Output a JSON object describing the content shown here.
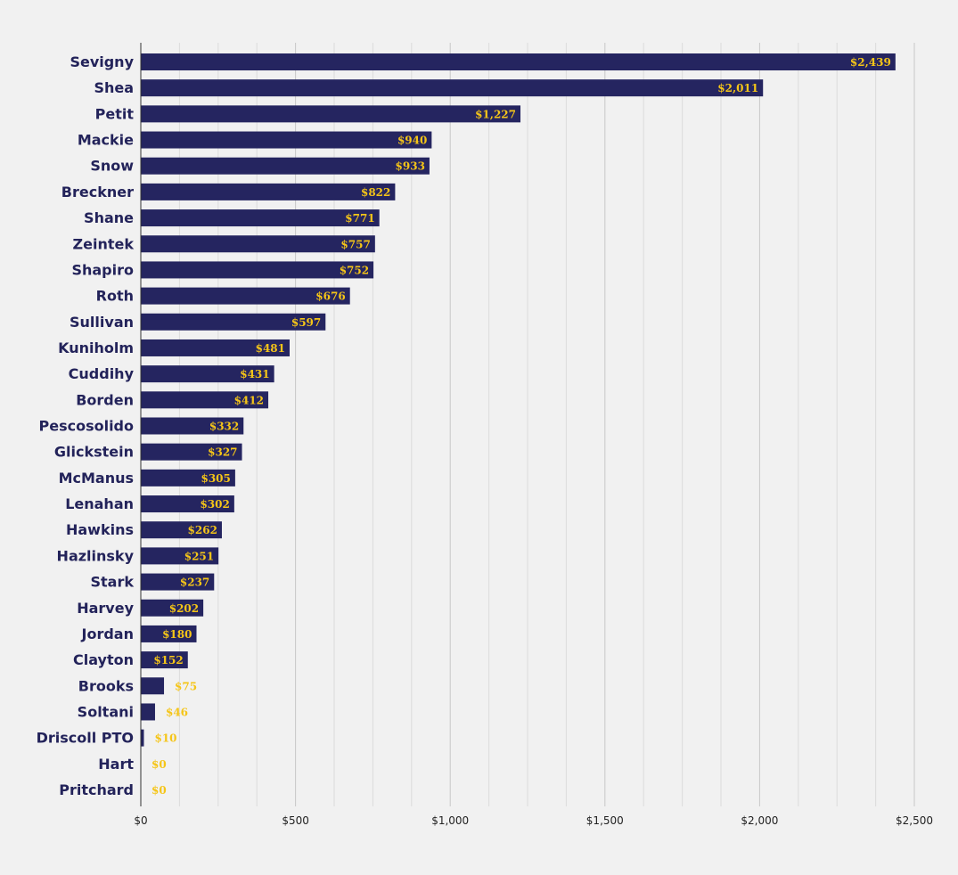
{
  "chart_data": {
    "type": "bar",
    "orientation": "horizontal",
    "categories": [
      "Sevigny",
      "Shea",
      "Petit",
      "Mackie",
      "Snow",
      "Breckner",
      "Shane",
      "Zeintek",
      "Shapiro",
      "Roth",
      "Sullivan",
      "Kuniholm",
      "Cuddihy",
      "Borden",
      "Pescosolido",
      "Glickstein",
      "McManus",
      "Lenahan",
      "Hawkins",
      "Hazlinsky",
      "Stark",
      "Harvey",
      "Jordan",
      "Clayton",
      "Brooks",
      "Soltani",
      "Driscoll PTO",
      "Hart",
      "Pritchard"
    ],
    "values": [
      2439,
      2011,
      1227,
      940,
      933,
      822,
      771,
      757,
      752,
      676,
      597,
      481,
      431,
      412,
      332,
      327,
      305,
      302,
      262,
      251,
      237,
      202,
      180,
      152,
      75,
      46,
      10,
      0,
      0
    ],
    "value_labels": [
      "$2,439",
      "$2,011",
      "$1,227",
      "$940",
      "$933",
      "$822",
      "$771",
      "$757",
      "$752",
      "$676",
      "$597",
      "$481",
      "$431",
      "$412",
      "$332",
      "$327",
      "$305",
      "$302",
      "$262",
      "$251",
      "$237",
      "$202",
      "$180",
      "$152",
      "$75",
      "$46",
      "$10",
      "$0",
      "$0"
    ],
    "xlim": [
      0,
      2500
    ],
    "x_ticks": [
      0,
      500,
      1000,
      1500,
      2000,
      2500
    ],
    "x_tick_labels": [
      "$0",
      "$500",
      "$1,000",
      "$1,500",
      "$2,000",
      "$2,500"
    ],
    "title": "",
    "xlabel": "",
    "ylabel": "",
    "grid": true,
    "legend": "none",
    "colors": {
      "bar": "#252560",
      "value_label": "#f5c518",
      "category_label": "#23235a",
      "background": "#f1f1f1",
      "grid_major": "#c8c8c8",
      "grid_minor": "#dcdcdc"
    }
  }
}
